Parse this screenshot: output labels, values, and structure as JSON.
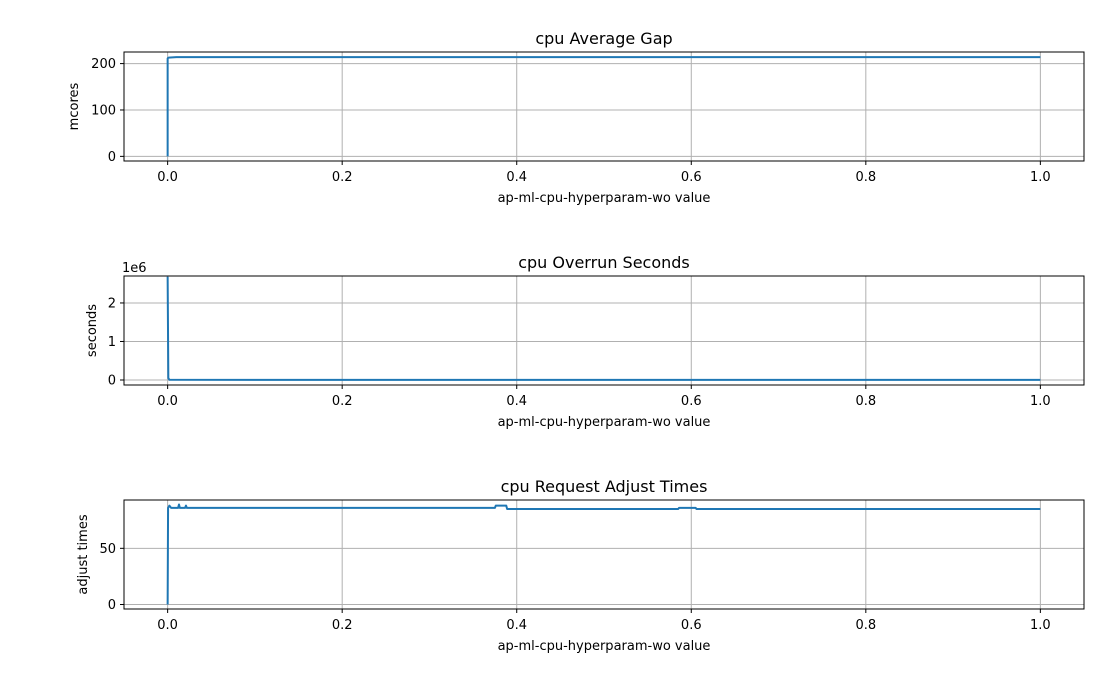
{
  "chart_data": [
    {
      "type": "line",
      "title": "cpu Average Gap",
      "xlabel": "ap-ml-cpu-hyperparam-wo value",
      "ylabel": "mcores",
      "xlim": [
        -0.05,
        1.05
      ],
      "ylim": [
        -10,
        225
      ],
      "grid": true,
      "x_ticks": [
        0.0,
        0.2,
        0.4,
        0.6,
        0.8,
        1.0
      ],
      "x_tick_labels": [
        "0.0",
        "0.2",
        "0.4",
        "0.6",
        "0.8",
        "1.0"
      ],
      "y_ticks": [
        0,
        100,
        200
      ],
      "y_tick_labels": [
        "0",
        "100",
        "200"
      ],
      "offset_label": "",
      "series_color": "#1f77b4",
      "x": [
        0.0,
        0.0,
        0.001,
        0.01,
        0.1,
        0.3,
        0.5,
        0.7,
        0.9,
        1.0
      ],
      "y": [
        0,
        211,
        213,
        214,
        214,
        214,
        214,
        214,
        214,
        214
      ]
    },
    {
      "type": "line",
      "title": "cpu Overrun Seconds",
      "xlabel": "ap-ml-cpu-hyperparam-wo value",
      "ylabel": "seconds",
      "xlim": [
        -0.05,
        1.05
      ],
      "ylim": [
        -0.13,
        2.7
      ],
      "grid": true,
      "x_ticks": [
        0.0,
        0.2,
        0.4,
        0.6,
        0.8,
        1.0
      ],
      "x_tick_labels": [
        "0.0",
        "0.2",
        "0.4",
        "0.6",
        "0.8",
        "1.0"
      ],
      "y_ticks": [
        0,
        1,
        2
      ],
      "y_tick_labels": [
        "0",
        "1",
        "2"
      ],
      "offset_label": "1e6",
      "series_color": "#1f77b4",
      "x": [
        0.0,
        0.0008,
        0.002,
        0.1,
        0.3,
        0.5,
        0.7,
        0.9,
        1.0
      ],
      "y": [
        2.68,
        0.05,
        0.005,
        0.002,
        0.002,
        0.002,
        0.002,
        0.002,
        0.002
      ]
    },
    {
      "type": "line",
      "title": "cpu Request Adjust Times",
      "xlabel": "ap-ml-cpu-hyperparam-wo value",
      "ylabel": "adjust times",
      "xlim": [
        -0.05,
        1.05
      ],
      "ylim": [
        -4,
        93
      ],
      "grid": true,
      "x_ticks": [
        0.0,
        0.2,
        0.4,
        0.6,
        0.8,
        1.0
      ],
      "x_tick_labels": [
        "0.0",
        "0.2",
        "0.4",
        "0.6",
        "0.8",
        "1.0"
      ],
      "y_ticks": [
        0,
        50
      ],
      "y_tick_labels": [
        "0",
        "50"
      ],
      "offset_label": "",
      "series_color": "#1f77b4",
      "x": [
        0.0,
        0.0005,
        0.002,
        0.003,
        0.004,
        0.006,
        0.012,
        0.013,
        0.014,
        0.015,
        0.016,
        0.02,
        0.021,
        0.022,
        0.023,
        0.375,
        0.376,
        0.388,
        0.389,
        0.585,
        0.586,
        0.605,
        0.606,
        1.0
      ],
      "y": [
        0,
        86,
        88,
        87,
        86,
        86,
        86,
        89,
        86,
        86,
        86,
        86,
        88,
        86,
        86,
        86,
        88,
        88,
        85,
        85,
        86,
        86,
        85,
        85
      ]
    }
  ]
}
